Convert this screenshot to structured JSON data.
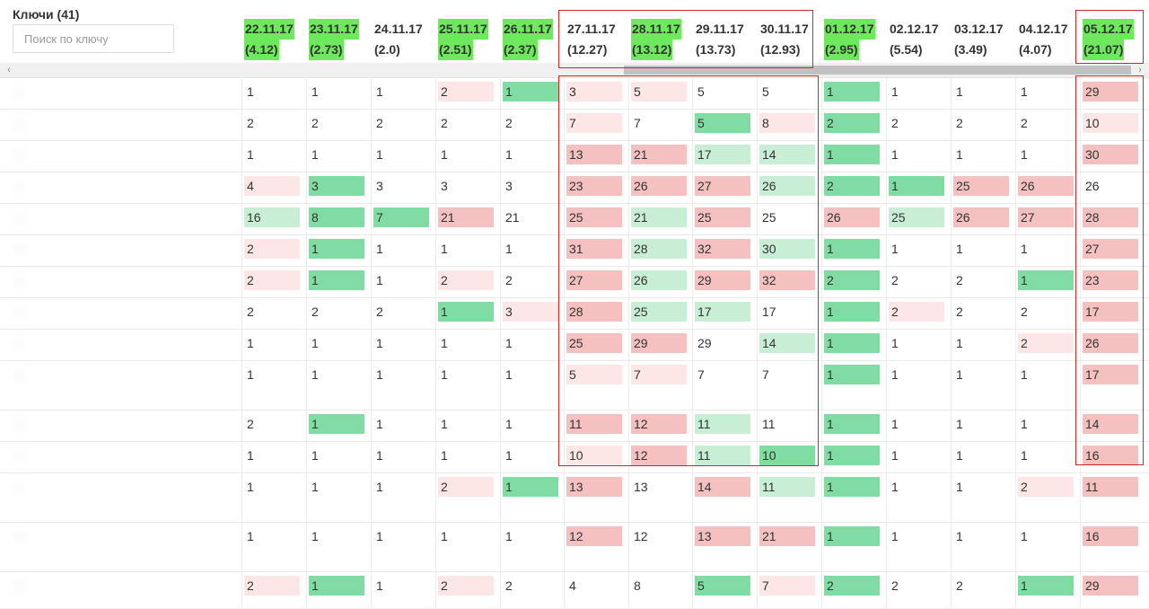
{
  "keys": {
    "title": "Ключи (41)",
    "search_placeholder": "Поиск по ключу"
  },
  "dates": [
    {
      "date": "22.11.17",
      "value": "(4.12)",
      "hl": true
    },
    {
      "date": "23.11.17",
      "value": "(2.73)",
      "hl": true
    },
    {
      "date": "24.11.17",
      "value": "(2.0)",
      "hl": false
    },
    {
      "date": "25.11.17",
      "value": "(2.51)",
      "hl": true
    },
    {
      "date": "26.11.17",
      "value": "(2.37)",
      "hl": true
    },
    {
      "date": "27.11.17",
      "value": "(12.27)",
      "hl": false
    },
    {
      "date": "28.11.17",
      "value": "(13.12)",
      "hl": true
    },
    {
      "date": "29.11.17",
      "value": "(13.73)",
      "hl": false
    },
    {
      "date": "30.11.17",
      "value": "(12.93)",
      "hl": false
    },
    {
      "date": "01.12.17",
      "value": "(2.95)",
      "hl": true
    },
    {
      "date": "02.12.17",
      "value": "(5.54)",
      "hl": false
    },
    {
      "date": "03.12.17",
      "value": "(3.49)",
      "hl": false
    },
    {
      "date": "04.12.17",
      "value": "(4.07)",
      "hl": false
    },
    {
      "date": "05.12.17",
      "value": "(21.07)",
      "hl": true
    }
  ],
  "scrollbar": {
    "left_arrow": "‹",
    "right_arrow": "›"
  },
  "rows": [
    {
      "key": "—",
      "cells": [
        [
          "1",
          ""
        ],
        [
          "1",
          ""
        ],
        [
          "1",
          ""
        ],
        [
          "2",
          "lr"
        ],
        [
          "1",
          "g"
        ],
        [
          "3",
          "lr"
        ],
        [
          "5",
          "lr"
        ],
        [
          "5",
          ""
        ],
        [
          "5",
          ""
        ],
        [
          "1",
          "g"
        ],
        [
          "1",
          ""
        ],
        [
          "1",
          ""
        ],
        [
          "1",
          ""
        ],
        [
          "29",
          "r"
        ]
      ]
    },
    {
      "key": "—",
      "cells": [
        [
          "2",
          ""
        ],
        [
          "2",
          ""
        ],
        [
          "2",
          ""
        ],
        [
          "2",
          ""
        ],
        [
          "2",
          ""
        ],
        [
          "7",
          "lr"
        ],
        [
          "7",
          ""
        ],
        [
          "5",
          "g"
        ],
        [
          "8",
          "lr"
        ],
        [
          "2",
          "g"
        ],
        [
          "2",
          ""
        ],
        [
          "2",
          ""
        ],
        [
          "2",
          ""
        ],
        [
          "10",
          "lr"
        ]
      ]
    },
    {
      "key": "—",
      "cells": [
        [
          "1",
          ""
        ],
        [
          "1",
          ""
        ],
        [
          "1",
          ""
        ],
        [
          "1",
          ""
        ],
        [
          "1",
          ""
        ],
        [
          "13",
          "r"
        ],
        [
          "21",
          "r"
        ],
        [
          "17",
          "lg"
        ],
        [
          "14",
          "lg"
        ],
        [
          "1",
          "g"
        ],
        [
          "1",
          ""
        ],
        [
          "1",
          ""
        ],
        [
          "1",
          ""
        ],
        [
          "30",
          "r"
        ]
      ]
    },
    {
      "key": "—",
      "cells": [
        [
          "4",
          "lr"
        ],
        [
          "3",
          "g"
        ],
        [
          "3",
          ""
        ],
        [
          "3",
          ""
        ],
        [
          "3",
          ""
        ],
        [
          "23",
          "r"
        ],
        [
          "26",
          "r"
        ],
        [
          "27",
          "r"
        ],
        [
          "26",
          "lg"
        ],
        [
          "2",
          "g"
        ],
        [
          "1",
          "g"
        ],
        [
          "25",
          "r"
        ],
        [
          "26",
          "r"
        ],
        [
          "26",
          ""
        ]
      ]
    },
    {
      "key": "—",
      "cells": [
        [
          "16",
          "lg"
        ],
        [
          "8",
          "g"
        ],
        [
          "7",
          "g"
        ],
        [
          "21",
          "r"
        ],
        [
          "21",
          ""
        ],
        [
          "25",
          "r"
        ],
        [
          "21",
          "lg"
        ],
        [
          "25",
          "r"
        ],
        [
          "25",
          ""
        ],
        [
          "26",
          "r"
        ],
        [
          "25",
          "lg"
        ],
        [
          "26",
          "r"
        ],
        [
          "27",
          "r"
        ],
        [
          "28",
          "r"
        ]
      ]
    },
    {
      "key": "—",
      "cells": [
        [
          "2",
          "lr"
        ],
        [
          "1",
          "g"
        ],
        [
          "1",
          ""
        ],
        [
          "1",
          ""
        ],
        [
          "1",
          ""
        ],
        [
          "31",
          "r"
        ],
        [
          "28",
          "lg"
        ],
        [
          "32",
          "r"
        ],
        [
          "30",
          "lg"
        ],
        [
          "1",
          "g"
        ],
        [
          "1",
          ""
        ],
        [
          "1",
          ""
        ],
        [
          "1",
          ""
        ],
        [
          "27",
          "r"
        ]
      ]
    },
    {
      "key": "—",
      "cells": [
        [
          "2",
          "lr"
        ],
        [
          "1",
          "g"
        ],
        [
          "1",
          ""
        ],
        [
          "2",
          "lr"
        ],
        [
          "2",
          ""
        ],
        [
          "27",
          "r"
        ],
        [
          "26",
          "lg"
        ],
        [
          "29",
          "r"
        ],
        [
          "32",
          "r"
        ],
        [
          "2",
          "g"
        ],
        [
          "2",
          ""
        ],
        [
          "2",
          ""
        ],
        [
          "1",
          "g"
        ],
        [
          "23",
          "r"
        ]
      ]
    },
    {
      "key": "—",
      "cells": [
        [
          "2",
          ""
        ],
        [
          "2",
          ""
        ],
        [
          "2",
          ""
        ],
        [
          "1",
          "g"
        ],
        [
          "3",
          "lr"
        ],
        [
          "28",
          "r"
        ],
        [
          "25",
          "lg"
        ],
        [
          "17",
          "lg"
        ],
        [
          "17",
          ""
        ],
        [
          "1",
          "g"
        ],
        [
          "2",
          "lr"
        ],
        [
          "2",
          ""
        ],
        [
          "2",
          ""
        ],
        [
          "17",
          "r"
        ]
      ]
    },
    {
      "key": "—",
      "cells": [
        [
          "1",
          ""
        ],
        [
          "1",
          ""
        ],
        [
          "1",
          ""
        ],
        [
          "1",
          ""
        ],
        [
          "1",
          ""
        ],
        [
          "25",
          "r"
        ],
        [
          "29",
          "r"
        ],
        [
          "29",
          ""
        ],
        [
          "14",
          "lg"
        ],
        [
          "1",
          "g"
        ],
        [
          "1",
          ""
        ],
        [
          "1",
          ""
        ],
        [
          "2",
          "lr"
        ],
        [
          "26",
          "r"
        ]
      ]
    },
    {
      "key": "—",
      "cells": [
        [
          "1",
          ""
        ],
        [
          "1",
          ""
        ],
        [
          "1",
          ""
        ],
        [
          "1",
          ""
        ],
        [
          "1",
          ""
        ],
        [
          "5",
          "lr"
        ],
        [
          "7",
          "lr"
        ],
        [
          "7",
          ""
        ],
        [
          "7",
          ""
        ],
        [
          "1",
          "g"
        ],
        [
          "1",
          ""
        ],
        [
          "1",
          ""
        ],
        [
          "1",
          ""
        ],
        [
          "17",
          "r"
        ]
      ]
    },
    {
      "key": "—",
      "cells": [
        [
          "2",
          ""
        ],
        [
          "1",
          "g"
        ],
        [
          "1",
          ""
        ],
        [
          "1",
          ""
        ],
        [
          "1",
          ""
        ],
        [
          "11",
          "r"
        ],
        [
          "12",
          "r"
        ],
        [
          "11",
          "lg"
        ],
        [
          "11",
          ""
        ],
        [
          "1",
          "g"
        ],
        [
          "1",
          ""
        ],
        [
          "1",
          ""
        ],
        [
          "1",
          ""
        ],
        [
          "14",
          "r"
        ]
      ]
    },
    {
      "key": "—",
      "cells": [
        [
          "1",
          ""
        ],
        [
          "1",
          ""
        ],
        [
          "1",
          ""
        ],
        [
          "1",
          ""
        ],
        [
          "1",
          ""
        ],
        [
          "10",
          "lr"
        ],
        [
          "12",
          "r"
        ],
        [
          "11",
          "lg"
        ],
        [
          "10",
          "g"
        ],
        [
          "1",
          "g"
        ],
        [
          "1",
          ""
        ],
        [
          "1",
          ""
        ],
        [
          "1",
          ""
        ],
        [
          "16",
          "r"
        ]
      ]
    },
    {
      "key": "—",
      "cells": [
        [
          "1",
          ""
        ],
        [
          "1",
          ""
        ],
        [
          "1",
          ""
        ],
        [
          "2",
          "lr"
        ],
        [
          "1",
          "g"
        ],
        [
          "13",
          "r"
        ],
        [
          "13",
          ""
        ],
        [
          "14",
          "r"
        ],
        [
          "11",
          "lg"
        ],
        [
          "1",
          "g"
        ],
        [
          "1",
          ""
        ],
        [
          "1",
          ""
        ],
        [
          "2",
          "lr"
        ],
        [
          "11",
          "r"
        ]
      ]
    },
    {
      "key": "—",
      "cells": [
        [
          "1",
          ""
        ],
        [
          "1",
          ""
        ],
        [
          "1",
          ""
        ],
        [
          "1",
          ""
        ],
        [
          "1",
          ""
        ],
        [
          "12",
          "r"
        ],
        [
          "12",
          ""
        ],
        [
          "13",
          "r"
        ],
        [
          "21",
          "r"
        ],
        [
          "1",
          "g"
        ],
        [
          "1",
          ""
        ],
        [
          "1",
          ""
        ],
        [
          "1",
          ""
        ],
        [
          "16",
          "r"
        ]
      ]
    },
    {
      "key": "—",
      "cells": [
        [
          "2",
          "lr"
        ],
        [
          "1",
          "g"
        ],
        [
          "1",
          ""
        ],
        [
          "2",
          "lr"
        ],
        [
          "2",
          ""
        ],
        [
          "4",
          ""
        ],
        [
          "8",
          ""
        ],
        [
          "5",
          "g"
        ],
        [
          "7",
          "lr"
        ],
        [
          "2",
          "g"
        ],
        [
          "2",
          ""
        ],
        [
          "2",
          ""
        ],
        [
          "1",
          "g"
        ],
        [
          "29",
          "r"
        ]
      ]
    }
  ]
}
